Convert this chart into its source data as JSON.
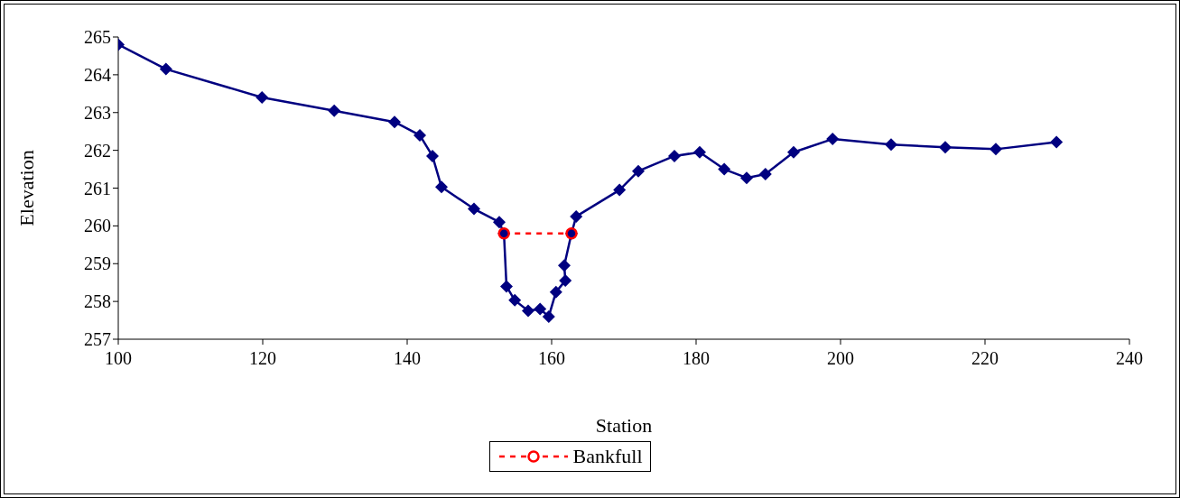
{
  "chart_data": {
    "type": "line",
    "xlabel": "Station",
    "ylabel": "Elevation",
    "xlim": [
      100,
      240
    ],
    "xticks": [
      100,
      120,
      140,
      160,
      180,
      200,
      220,
      240
    ],
    "ylim": [
      257,
      265
    ],
    "yticks": [
      257,
      258,
      259,
      260,
      261,
      262,
      263,
      264,
      265
    ],
    "grid": false,
    "legend": "bottom",
    "series": [
      {
        "color": "#000080",
        "marker": "diamond",
        "line_style": "solid",
        "x": [
          100,
          106.6,
          119.9,
          129.9,
          138.25,
          141.75,
          143.5,
          144.75,
          149.25,
          152.75,
          153.4,
          153.75,
          154.9,
          156.75,
          158.4,
          159.6,
          160.6,
          161.9,
          161.75,
          162.75,
          163.4,
          169.4,
          172,
          177,
          180.5,
          183.9,
          187,
          189.6,
          193.5,
          198.9,
          207,
          214.5,
          221.5,
          229.9
        ],
        "values": [
          264.8,
          264.15,
          263.4,
          263.05,
          262.75,
          262.4,
          261.85,
          261.03,
          260.45,
          260.1,
          259.8,
          258.4,
          258.03,
          257.75,
          257.8,
          257.6,
          258.25,
          258.55,
          258.95,
          259.8,
          260.25,
          260.95,
          261.45,
          261.85,
          261.95,
          261.5,
          261.27,
          261.37,
          261.95,
          262.3,
          262.15,
          262.08,
          262.03,
          262.22
        ]
      },
      {
        "name": "Bankfull",
        "color": "#ff0000",
        "marker": "circle",
        "line_style": "dashed",
        "x": [
          153.4,
          162.75
        ],
        "values": [
          259.8,
          259.8
        ]
      }
    ]
  }
}
